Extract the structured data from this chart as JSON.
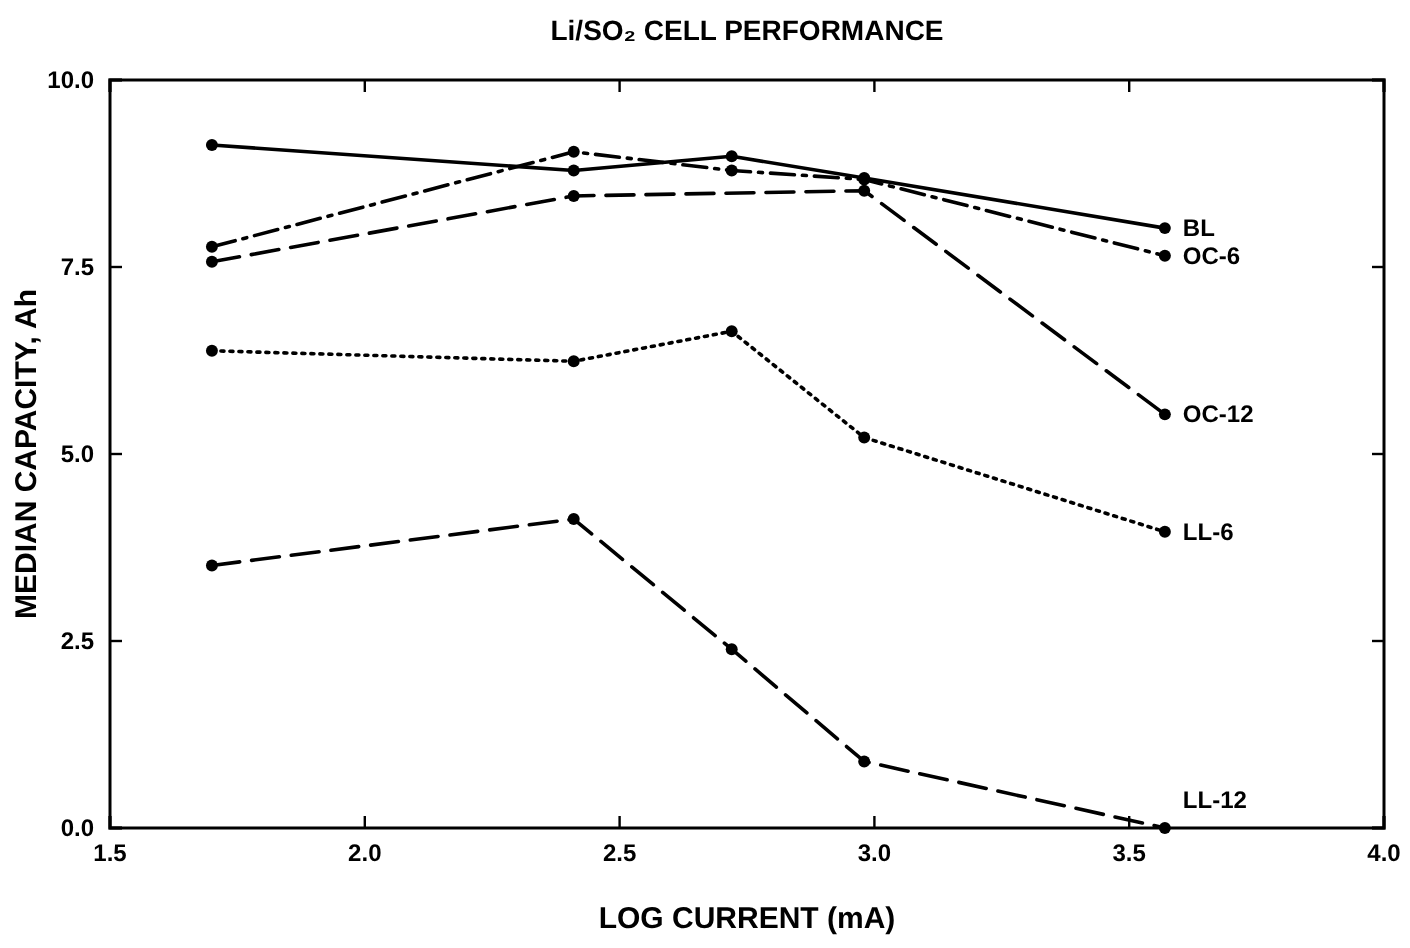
{
  "chart_data": {
    "type": "line",
    "title": "Li/SO₂ CELL PERFORMANCE",
    "xlabel": "LOG CURRENT (mA)",
    "ylabel": "MEDIAN CAPACITY, Ah",
    "x": [
      1.7,
      2.41,
      2.72,
      2.98,
      3.57
    ],
    "xlim": [
      1.5,
      4.0
    ],
    "xticks": [
      {
        "value": 1.5,
        "label": "1.5"
      },
      {
        "value": 2,
        "label": "2.0"
      },
      {
        "value": 2.5,
        "label": "2.5"
      },
      {
        "value": 3,
        "label": "3.0"
      },
      {
        "value": 3.5,
        "label": "3.5"
      },
      {
        "value": 4,
        "label": "4.0"
      }
    ],
    "ylim": [
      0,
      10
    ],
    "yticks": [
      {
        "value": 0,
        "label": "0.0"
      },
      {
        "value": 2.5,
        "label": "2.5"
      },
      {
        "value": 5,
        "label": "5.0"
      },
      {
        "value": 7.5,
        "label": "7.5"
      },
      {
        "value": 10,
        "label": "10.0"
      }
    ],
    "marker": "circle",
    "grid": false,
    "legend": false,
    "series": [
      {
        "name": "BL",
        "color": "#000000",
        "line_style": "solid",
        "values": [
          9.13,
          8.79,
          8.98,
          8.69,
          8.02
        ]
      },
      {
        "name": "OC-6",
        "color": "#000000",
        "line_style": "dashdot",
        "values": [
          7.77,
          9.04,
          8.79,
          8.67,
          7.65
        ]
      },
      {
        "name": "OC-12",
        "color": "#000000",
        "line_style": "dashed",
        "x": [
          1.7,
          2.41,
          2.98,
          3.57
        ],
        "values": [
          7.57,
          8.45,
          8.52,
          5.53
        ]
      },
      {
        "name": "LL-6",
        "color": "#000000",
        "line_style": "dotted",
        "values": [
          6.38,
          6.24,
          6.64,
          5.22,
          3.96
        ]
      },
      {
        "name": "LL-12",
        "color": "#000000",
        "line_style": "dashed",
        "values": [
          3.51,
          4.13,
          2.39,
          0.89,
          0.0
        ]
      }
    ]
  }
}
